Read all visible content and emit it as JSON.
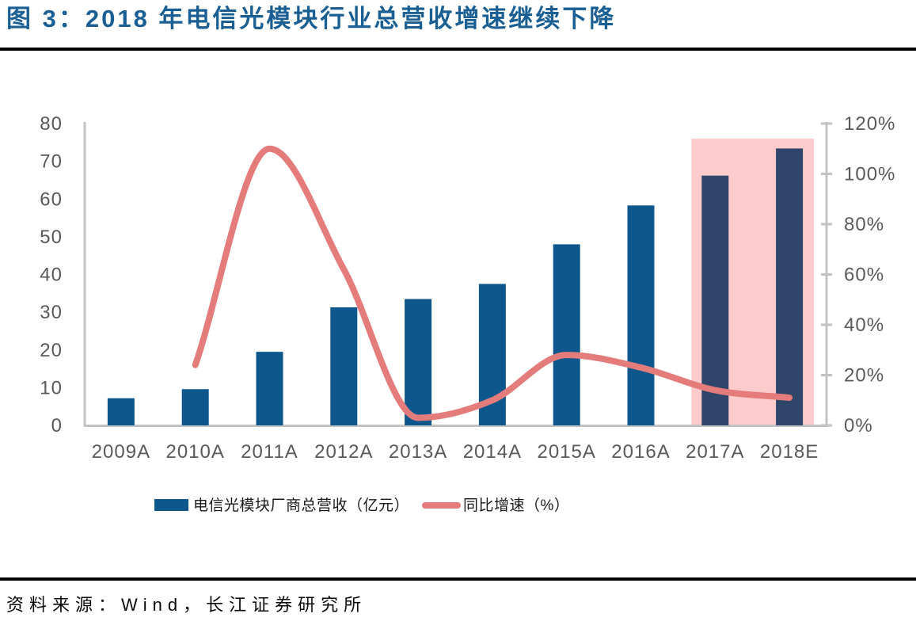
{
  "figure": {
    "title": "图 3：2018 年电信光模块行业总营收增速继续下降",
    "source": "资料来源：Wind，长江证券研究所"
  },
  "legend": {
    "bar_label": "电信光模块厂商总营收（亿元）",
    "line_label": "同比增速（%）"
  },
  "colors": {
    "title_text": "#1a5f94",
    "bar": "#0e578c",
    "bar_highlighted": "#2f4569",
    "growth_line": "#e57c7c",
    "highlight_background": "#fdcbcb",
    "axis_line": "#c2c2c2",
    "tick_text": "#595959",
    "divider": "#000000"
  },
  "chart_data": {
    "type": "bar+line combo",
    "title": "图 3：2018 年电信光模块行业总营收增速继续下降",
    "categories": [
      "2009A",
      "2010A",
      "2011A",
      "2012A",
      "2013A",
      "2014A",
      "2015A",
      "2016A",
      "2017A",
      "2018E"
    ],
    "series": [
      {
        "name": "电信光模块厂商总营收（亿元）",
        "type": "bar",
        "axis": "left",
        "values": [
          7.2,
          9.6,
          19.5,
          31.3,
          33.5,
          37.5,
          48,
          58.3,
          66.2,
          73.4
        ]
      },
      {
        "name": "同比增速（%）",
        "type": "line",
        "axis": "right",
        "values": [
          null,
          24,
          110,
          62,
          3,
          10,
          28,
          23,
          14,
          11
        ]
      }
    ],
    "left_axis": {
      "min": 0,
      "max": 80,
      "step": 10
    },
    "right_axis": {
      "min": 0,
      "max": 120,
      "step": 20,
      "suffix": "%"
    },
    "highlight": {
      "categories": [
        "2017A",
        "2018E"
      ],
      "top_left_axis_value": 76
    },
    "grid": false,
    "legend_position": "bottom"
  }
}
